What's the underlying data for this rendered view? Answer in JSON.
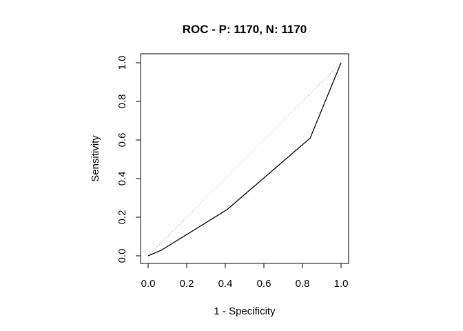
{
  "chart_data": {
    "type": "line",
    "title": "ROC - P: 1170, N: 1170",
    "xlabel": "1 - Specificity",
    "ylabel": "Sensitivity",
    "xlim": [
      0,
      1
    ],
    "ylim": [
      0,
      1
    ],
    "x_ticks": [
      "0.0",
      "0.2",
      "0.4",
      "0.6",
      "0.8",
      "1.0"
    ],
    "y_ticks": [
      "0.0",
      "0.2",
      "0.4",
      "0.6",
      "0.8",
      "1.0"
    ],
    "grid": false,
    "series": [
      {
        "x": [
          0.0,
          0.07,
          0.41,
          0.84,
          1.0
        ],
        "y": [
          0.0,
          0.03,
          0.24,
          0.61,
          1.0
        ],
        "color": "#000000",
        "style": "solid"
      }
    ],
    "reference_line": {
      "x": [
        0,
        1
      ],
      "y": [
        0,
        1
      ],
      "color": "#b5b5b5",
      "style": "dotted"
    }
  }
}
